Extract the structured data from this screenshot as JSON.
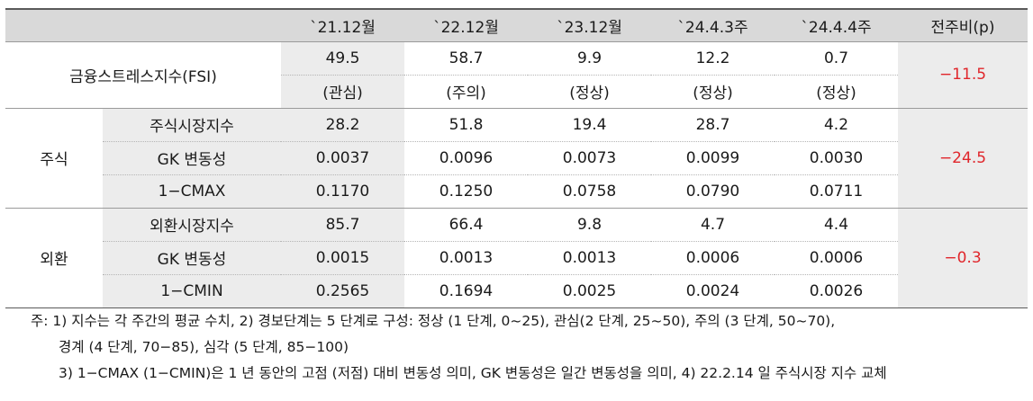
{
  "header": {
    "cols": [
      "`21.12월",
      "`22.12월",
      "`23.12월",
      "`24.4.3주",
      "`24.4.4주",
      "전주비(p)"
    ]
  },
  "fsi": {
    "label": "금융스트레스지수(FSI)",
    "values": [
      "49.5",
      "58.7",
      "9.9",
      "12.2",
      "0.7"
    ],
    "stages": [
      "(관심)",
      "(주의)",
      "(정상)",
      "(정상)",
      "(정상)"
    ],
    "change": "−11.5"
  },
  "stock": {
    "group": "주식",
    "change": "−24.5",
    "rows": [
      {
        "label": "주식시장지수",
        "values": [
          "28.2",
          "51.8",
          "19.4",
          "28.7",
          "4.2"
        ]
      },
      {
        "label": "GK 변동성",
        "values": [
          "0.0037",
          "0.0096",
          "0.0073",
          "0.0099",
          "0.0030"
        ]
      },
      {
        "label": "1−CMAX",
        "values": [
          "0.1170",
          "0.1250",
          "0.0758",
          "0.0790",
          "0.0711"
        ]
      }
    ]
  },
  "fx": {
    "group": "외환",
    "change": "−0.3",
    "rows": [
      {
        "label": "외환시장지수",
        "values": [
          "85.7",
          "66.4",
          "9.8",
          "4.7",
          "4.4"
        ]
      },
      {
        "label": "GK 변동성",
        "values": [
          "0.0015",
          "0.0013",
          "0.0013",
          "0.0006",
          "0.0006"
        ]
      },
      {
        "label": "1−CMIN",
        "values": [
          "0.2565",
          "0.1694",
          "0.0025",
          "0.0024",
          "0.0026"
        ]
      }
    ]
  },
  "notes": {
    "line1": "주: 1) 지수는 각 주간의 평균 수치, 2) 경보단계는 5 단계로 구성: 정상 (1 단계, 0~25), 관심(2 단계, 25~50), 주의 (3 단계, 50~70),",
    "line2": "경계 (4 단계, 70−85), 심각 (5 단계, 85−100)",
    "line3": "3) 1−CMAX (1−CMIN)은 1 년 동안의 고점 (저점) 대비 변동성 의미, GK 변동성은 일간 변동성을 의미, 4) 22.2.14 일 주식시장 지수 교체"
  },
  "colors": {
    "accent_red": "#e0262b",
    "header_bg": "#d9d9d9",
    "cell_gray": "#ececec"
  }
}
